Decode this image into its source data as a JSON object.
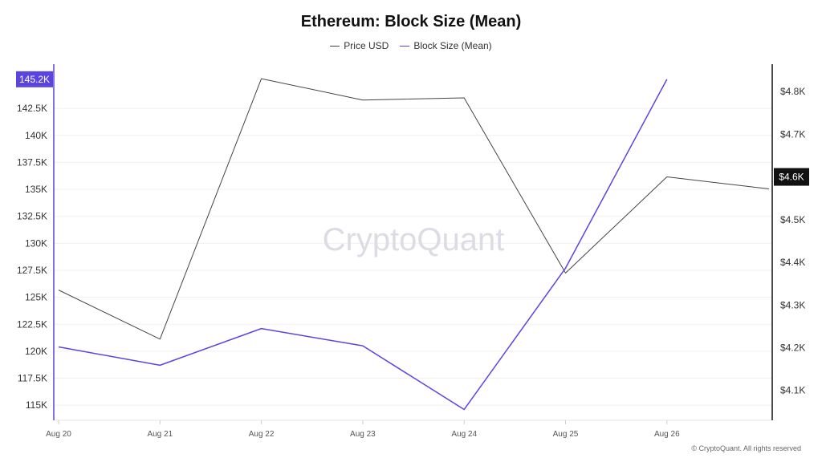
{
  "chart_data": {
    "type": "line",
    "title": "Ethereum: Block Size (Mean)",
    "categories": [
      "Aug 20",
      "Aug 21",
      "Aug 22",
      "Aug 23",
      "Aug 24",
      "Aug 25",
      "Aug 26",
      ""
    ],
    "series": [
      {
        "name": "Price USD",
        "axis": "right",
        "color": "#444444",
        "values": [
          4335,
          4220,
          4830,
          4780,
          4785,
          4375,
          4600,
          4572
        ]
      },
      {
        "name": "Block Size (Mean)",
        "axis": "left",
        "color": "#5b45e0",
        "values": [
          120400,
          118700,
          122100,
          120500,
          114600,
          127700,
          145200,
          null
        ]
      }
    ],
    "y_left": {
      "ticks": [
        115000,
        117500,
        120000,
        122500,
        125000,
        127500,
        130000,
        132500,
        135000,
        137500,
        140000,
        142500
      ],
      "tick_labels": [
        "115K",
        "117.5K",
        "120K",
        "122.5K",
        "125K",
        "127.5K",
        "130K",
        "132.5K",
        "135K",
        "137.5K",
        "140K",
        "142.5K"
      ],
      "range": [
        113600,
        146600
      ],
      "highlight_label": "145.2K",
      "highlight_value": 145200
    },
    "y_right": {
      "ticks": [
        4100,
        4200,
        4300,
        4400,
        4500,
        4600,
        4700,
        4800
      ],
      "tick_labels": [
        "$4.1K",
        "$4.2K",
        "$4.3K",
        "$4.4K",
        "$4.5K",
        "$4.6K",
        "$4.7K",
        "$4.8K"
      ],
      "range": [
        4030,
        4864
      ],
      "highlight_label": "$4.6K",
      "highlight_value": 4600
    },
    "grid": true,
    "legend_position": "top-center"
  },
  "watermark": "CryptoQuant",
  "copyright": "© CryptoQuant. All rights reserved",
  "colors": {
    "price": "#444444",
    "block_size": "#5b45e0",
    "grid": "#f0f0f0",
    "axis_text": "#333333"
  }
}
